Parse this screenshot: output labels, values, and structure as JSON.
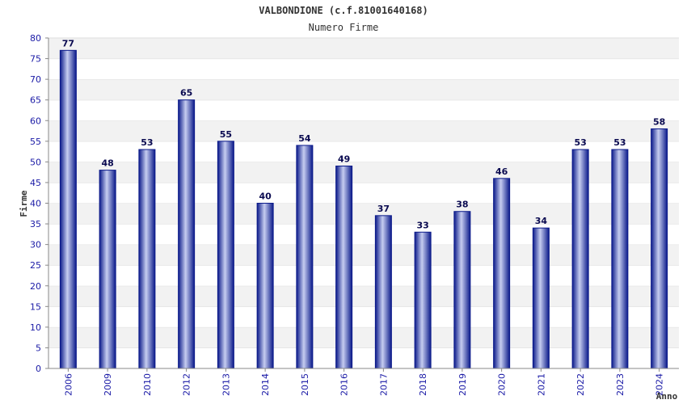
{
  "chart_data": {
    "type": "bar",
    "title": "VALBONDIONE (c.f.81001640168)",
    "subtitle": "Numero Firme",
    "xlabel": "Anno",
    "ylabel": "Firme",
    "categories": [
      "2006",
      "2009",
      "2010",
      "2012",
      "2013",
      "2014",
      "2015",
      "2016",
      "2017",
      "2018",
      "2019",
      "2020",
      "2021",
      "2022",
      "2023",
      "2024"
    ],
    "values": [
      77,
      48,
      53,
      65,
      55,
      40,
      54,
      49,
      37,
      33,
      38,
      46,
      34,
      53,
      53,
      58
    ],
    "data_labels": [
      "77",
      "48",
      "53",
      "65",
      "55",
      "40",
      "54",
      "49",
      "37",
      "33",
      "38",
      "46",
      "34",
      "53",
      "53",
      "58"
    ],
    "ylim": [
      0,
      80
    ],
    "yticks": [
      "0",
      "5",
      "10",
      "15",
      "20",
      "25",
      "30",
      "35",
      "40",
      "45",
      "50",
      "55",
      "60",
      "65",
      "70",
      "75",
      "80"
    ],
    "grid": true,
    "colors": {
      "bar_dark": "#0b1a8a",
      "bar_light": "#c6cdf0",
      "band_alt": "#f2f2f2",
      "axis": "#888888",
      "tick_text": "#1a1aa6"
    }
  }
}
